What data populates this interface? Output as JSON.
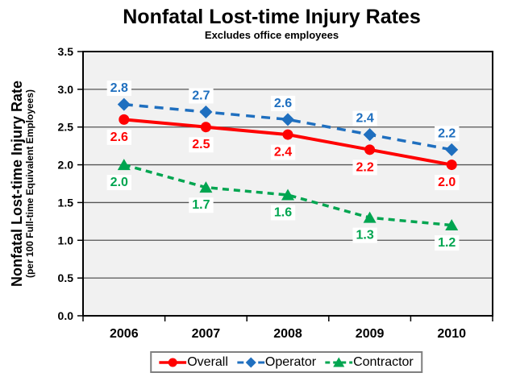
{
  "title": "Nonfatal Lost-time Injury Rates",
  "subtitle": "Excludes office employees",
  "y_axis": {
    "label": "Nonfatal Lost-time Injury Rate",
    "sublabel": "(per 100 Full-time Equivalent Employees)"
  },
  "chart_data": {
    "type": "line",
    "title": "Nonfatal Lost-time Injury Rates",
    "subtitle": "Excludes office employees",
    "ylabel": "Nonfatal Lost-time Injury Rate (per 100 Full-time Equivalent Employees)",
    "xlabel": "",
    "categories": [
      "2006",
      "2007",
      "2008",
      "2009",
      "2010"
    ],
    "series": [
      {
        "name": "Overall",
        "color": "#FF0000",
        "marker": "circle",
        "line_style": "solid",
        "label_position": "below",
        "values": [
          2.6,
          2.5,
          2.4,
          2.2,
          2.0
        ]
      },
      {
        "name": "Operator",
        "color": "#1F6FBF",
        "marker": "diamond",
        "line_style": "dashed",
        "label_position": "above",
        "values": [
          2.8,
          2.7,
          2.6,
          2.4,
          2.2
        ]
      },
      {
        "name": "Contractor",
        "color": "#00A550",
        "marker": "triangle",
        "line_style": "dashed",
        "label_position": "below",
        "values": [
          2.0,
          1.7,
          1.6,
          1.3,
          1.2
        ]
      }
    ],
    "ylim": [
      0.0,
      3.5
    ],
    "ytick_step": 0.5,
    "ytick_labels": [
      "0.0",
      "0.5",
      "1.0",
      "1.5",
      "2.0",
      "2.5",
      "3.0",
      "3.5"
    ],
    "grid": "horizontal",
    "legend_position": "bottom",
    "plot_background": "#F1F1F1",
    "data_labels": true
  }
}
